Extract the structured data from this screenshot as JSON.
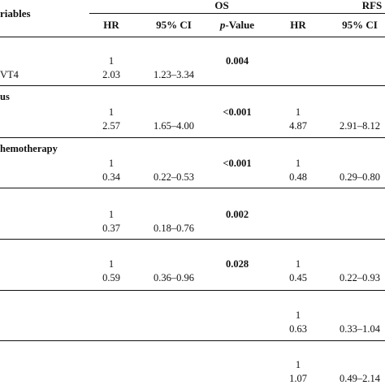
{
  "header": {
    "variables_label": "riables",
    "os_label": "OS",
    "rfs_label": "RFS",
    "os_columns": {
      "hr": "HR",
      "ci": "95% CI",
      "p_prefix": "p",
      "p_suffix": "-Value"
    },
    "rfs_columns": {
      "hr": "HR",
      "ci": "95% CI"
    }
  },
  "groups": [
    {
      "label": "",
      "p_value": "0.004",
      "rows": [
        {
          "label": "",
          "os_hr": "1",
          "os_ci": "",
          "rfs_hr": "",
          "rfs_ci": ""
        },
        {
          "label": "VT4",
          "os_hr": "2.03",
          "os_ci": "1.23–3.34",
          "rfs_hr": "",
          "rfs_ci": ""
        }
      ]
    },
    {
      "label": "us",
      "p_value": "<0.001",
      "rows": [
        {
          "label": "",
          "os_hr": "1",
          "os_ci": "",
          "rfs_hr": "1",
          "rfs_ci": ""
        },
        {
          "label": "",
          "os_hr": "2.57",
          "os_ci": "1.65–4.00",
          "rfs_hr": "4.87",
          "rfs_ci": "2.91–8.12"
        }
      ]
    },
    {
      "label": "hemotherapy",
      "p_value": "<0.001",
      "rows": [
        {
          "label": "",
          "os_hr": "1",
          "os_ci": "",
          "rfs_hr": "1",
          "rfs_ci": ""
        },
        {
          "label": "",
          "os_hr": "0.34",
          "os_ci": "0.22–0.53",
          "rfs_hr": "0.48",
          "rfs_ci": "0.29–0.80"
        }
      ]
    },
    {
      "label": "",
      "p_value": "0.002",
      "rows": [
        {
          "label": "",
          "os_hr": "1",
          "os_ci": "",
          "rfs_hr": "",
          "rfs_ci": ""
        },
        {
          "label": "",
          "os_hr": "0.37",
          "os_ci": "0.18–0.76",
          "rfs_hr": "",
          "rfs_ci": ""
        }
      ]
    },
    {
      "label": "",
      "p_value": "0.028",
      "rows": [
        {
          "label": "",
          "os_hr": "1",
          "os_ci": "",
          "rfs_hr": "1",
          "rfs_ci": ""
        },
        {
          "label": "",
          "os_hr": "0.59",
          "os_ci": "0.36–0.96",
          "rfs_hr": "0.45",
          "rfs_ci": "0.22–0.93"
        }
      ]
    },
    {
      "label": "",
      "p_value": "",
      "rows": [
        {
          "label": "",
          "os_hr": "",
          "os_ci": "",
          "rfs_hr": "1",
          "rfs_ci": ""
        },
        {
          "label": "",
          "os_hr": "",
          "os_ci": "",
          "rfs_hr": "0.63",
          "rfs_ci": "0.33–1.04"
        }
      ]
    },
    {
      "label": "",
      "p_value": "",
      "rows": [
        {
          "label": "",
          "os_hr": "",
          "os_ci": "",
          "rfs_hr": "1",
          "rfs_ci": ""
        },
        {
          "label": "",
          "os_hr": "",
          "os_ci": "",
          "rfs_hr": "1.07",
          "rfs_ci": "0.49–2.14"
        }
      ]
    }
  ]
}
